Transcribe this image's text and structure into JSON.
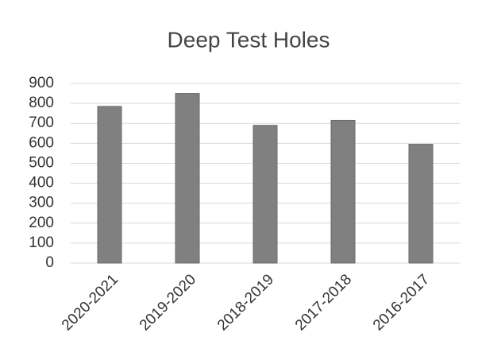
{
  "chart_data": {
    "type": "bar",
    "title": "Deep Test Holes",
    "categories": [
      "2020-2021",
      "2019-2020",
      "2018-2019",
      "2017-2018",
      "2016-2017"
    ],
    "values": [
      785,
      850,
      690,
      715,
      595
    ],
    "color": "#808080",
    "ylim": [
      0,
      900
    ],
    "yticks": [
      0,
      100,
      200,
      300,
      400,
      500,
      600,
      700,
      800,
      900
    ],
    "grid": true
  }
}
